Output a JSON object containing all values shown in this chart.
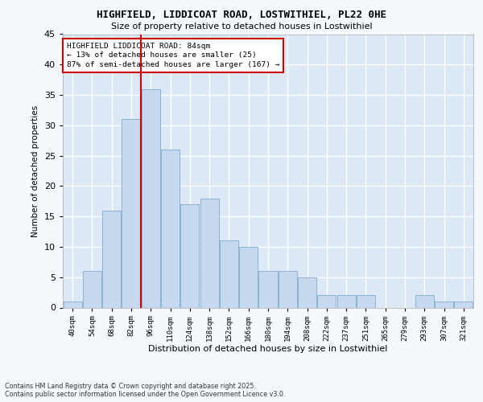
{
  "title1": "HIGHFIELD, LIDDICOAT ROAD, LOSTWITHIEL, PL22 0HE",
  "title2": "Size of property relative to detached houses in Lostwithiel",
  "xlabel": "Distribution of detached houses by size in Lostwithiel",
  "ylabel": "Number of detached properties",
  "categories": [
    "40sqm",
    "54sqm",
    "68sqm",
    "82sqm",
    "96sqm",
    "110sqm",
    "124sqm",
    "138sqm",
    "152sqm",
    "166sqm",
    "180sqm",
    "194sqm",
    "208sqm",
    "222sqm",
    "237sqm",
    "251sqm",
    "265sqm",
    "279sqm",
    "293sqm",
    "307sqm",
    "321sqm"
  ],
  "values": [
    1,
    6,
    16,
    31,
    36,
    26,
    17,
    18,
    11,
    10,
    6,
    6,
    5,
    2,
    2,
    2,
    0,
    0,
    2,
    1,
    1
  ],
  "bar_color": "#c5d8ed",
  "bar_edge_color": "#8ab4d4",
  "vline_color": "#cc0000",
  "annotation_text": "HIGHFIELD LIDDICOAT ROAD: 84sqm\n← 13% of detached houses are smaller (25)\n87% of semi-detached houses are larger (167) →",
  "annotation_box_color": "#ffffff",
  "annotation_box_edge_color": "#cc0000",
  "ylim": [
    0,
    45
  ],
  "yticks": [
    0,
    5,
    10,
    15,
    20,
    25,
    30,
    35,
    40,
    45
  ],
  "bg_color": "#dce8f5",
  "fig_color": "#f5f8fc",
  "grid_color": "#ffffff",
  "footer1": "Contains HM Land Registry data © Crown copyright and database right 2025.",
  "footer2": "Contains public sector information licensed under the Open Government Licence v3.0."
}
